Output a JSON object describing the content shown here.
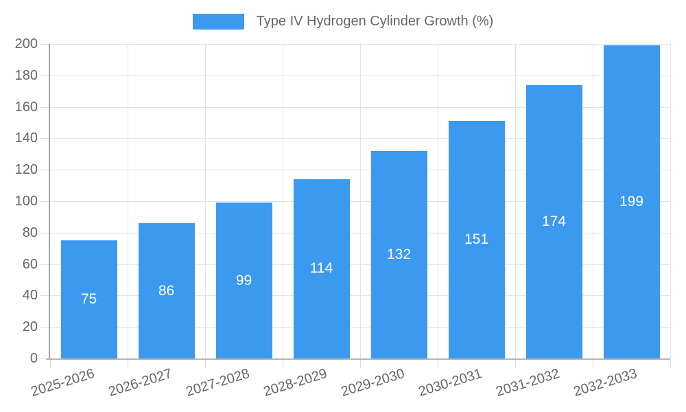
{
  "legend": {
    "label": "Type IV Hydrogen Cylinder Growth (%)",
    "swatch_color": "#3B99F0"
  },
  "chart_data": {
    "type": "bar",
    "title": "Type IV Hydrogen Cylinder Growth (%)",
    "categories": [
      "2025-2026",
      "2026-2027",
      "2027-2028",
      "2028-2029",
      "2029-2030",
      "2030-2031",
      "2031-2032",
      "2032-2033"
    ],
    "values": [
      75,
      86,
      99,
      114,
      132,
      151,
      174,
      199
    ],
    "value_labels": [
      "75",
      "86",
      "99",
      "114",
      "132",
      "151",
      "174",
      "199"
    ],
    "xlabel": "",
    "ylabel": "",
    "ylim": [
      0,
      200
    ],
    "ytick_step": 20,
    "yticks": [
      0,
      20,
      40,
      60,
      80,
      100,
      120,
      140,
      160,
      180,
      200
    ],
    "grid": true,
    "legend_position": "top",
    "bar_color": "#3B99F0",
    "value_label_color": "#ffffff",
    "axis_text_color": "#666666",
    "grid_color": "#e3e3e3",
    "axis_line_color": "#b0b0b0",
    "x_label_rotation_deg": -17
  }
}
